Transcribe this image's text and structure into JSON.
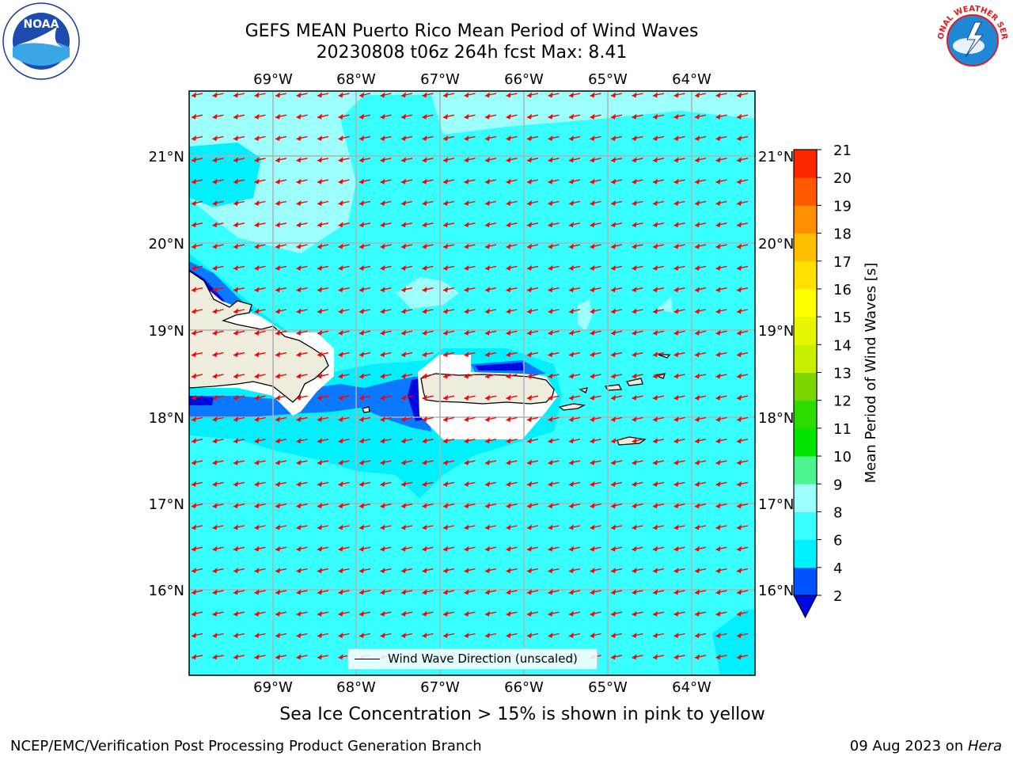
{
  "header": {
    "title_line1": "GEFS MEAN Puerto Rico Mean Period of Wind Waves",
    "title_line2": "20230808 t06z 264h fcst   Max: 8.41"
  },
  "map": {
    "lon_labels": [
      "69°W",
      "68°W",
      "67°W",
      "66°W",
      "65°W",
      "64°W"
    ],
    "lat_labels": [
      "21°N",
      "20°N",
      "19°N",
      "18°N",
      "17°N",
      "16°N"
    ],
    "legend_label": "Wind Wave Direction (unscaled)",
    "colors": {
      "ocean": "#38ffff",
      "light_cyan": "#9cfffb",
      "cyan_mid": "#00f0ff",
      "blue": "#0a78ff",
      "dark_blue": "#0008e0",
      "land": "#eeeddd",
      "arrow": "#ff0000"
    }
  },
  "colorbar": {
    "title": "Mean Period of Wind Waves [s]",
    "ticks": [
      "2",
      "4",
      "6",
      "8",
      "9",
      "10",
      "11",
      "12",
      "13",
      "14",
      "15",
      "16",
      "17",
      "18",
      "19",
      "20",
      "21"
    ],
    "colors": [
      "#0052ff",
      "#00f0ff",
      "#38ffff",
      "#9cfffb",
      "#4ef58e",
      "#00e400",
      "#2cdc00",
      "#7ed600",
      "#c6f000",
      "#e6f500",
      "#ffff00",
      "#ffe000",
      "#ffbe00",
      "#ff8e00",
      "#ff5a00",
      "#ff2600",
      "#ff0000"
    ],
    "under_color": "#0008e0"
  },
  "note": "Sea Ice Concentration > 15% is shown in pink to yellow",
  "footer": {
    "left": "NCEP/EMC/Verification Post Processing Product Generation Branch",
    "right_prefix": "09 Aug 2023 on ",
    "right_host": "Hera"
  },
  "logos": {
    "noaa_text": "NOAA",
    "nws_text": "NATIONAL WEATHER SERVICE"
  }
}
